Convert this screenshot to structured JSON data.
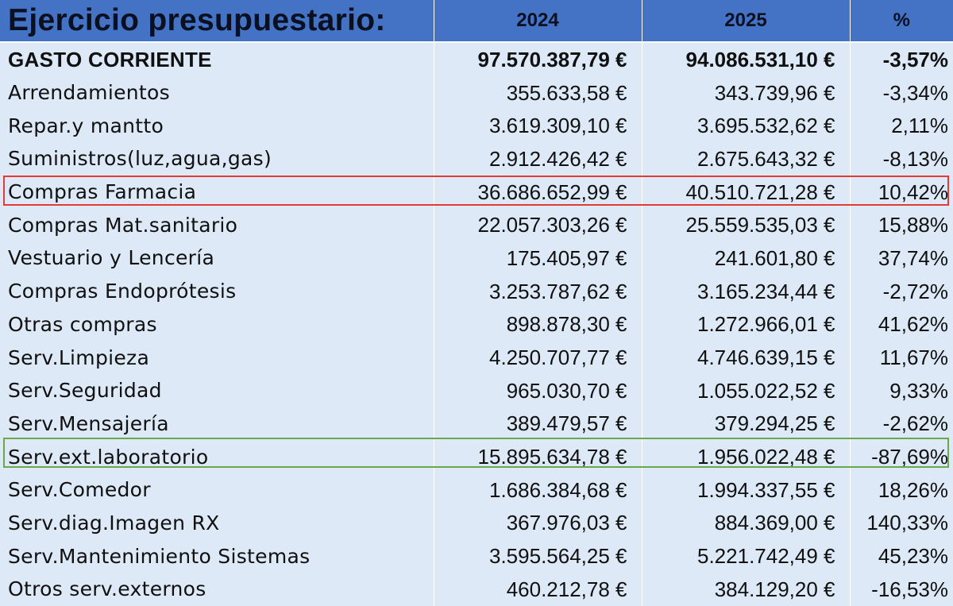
{
  "header": {
    "title": "Ejercicio presupuestario:",
    "col_2024": "2024",
    "col_2025": "2025",
    "col_pct": "%"
  },
  "highlight_colors": {
    "red": "#e53935",
    "green": "#6aa84f"
  },
  "header_color": "#4472c4",
  "rows": [
    {
      "label": "GASTO CORRIENTE",
      "v2024": "97.570.387,79 €",
      "v2025": "94.086.531,10 €",
      "pct": "-3,57%"
    },
    {
      "label": "Arrendamientos",
      "v2024": "355.633,58 €",
      "v2025": "343.739,96 €",
      "pct": "-3,34%"
    },
    {
      "label": "Repar.y mantto",
      "v2024": "3.619.309,10 €",
      "v2025": "3.695.532,62 €",
      "pct": "2,11%"
    },
    {
      "label": "Suministros(luz,agua,gas)",
      "v2024": "2.912.426,42 €",
      "v2025": "2.675.643,32 €",
      "pct": "-8,13%"
    },
    {
      "label": "Compras Farmacia",
      "v2024": "36.686.652,99 €",
      "v2025": "40.510.721,28 €",
      "pct": "10,42%"
    },
    {
      "label": "Compras Mat.sanitario",
      "v2024": "22.057.303,26 €",
      "v2025": "25.559.535,03 €",
      "pct": "15,88%"
    },
    {
      "label": "Vestuario y Lencería",
      "v2024": "175.405,97 €",
      "v2025": "241.601,80 €",
      "pct": "37,74%"
    },
    {
      "label": "Compras Endoprótesis",
      "v2024": "3.253.787,62 €",
      "v2025": "3.165.234,44 €",
      "pct": "-2,72%"
    },
    {
      "label": "Otras compras",
      "v2024": "898.878,30 €",
      "v2025": "1.272.966,01 €",
      "pct": "41,62%"
    },
    {
      "label": "Serv.Limpieza",
      "v2024": "4.250.707,77 €",
      "v2025": "4.746.639,15 €",
      "pct": "11,67%"
    },
    {
      "label": "Serv.Seguridad",
      "v2024": "965.030,70 €",
      "v2025": "1.055.022,52 €",
      "pct": "9,33%"
    },
    {
      "label": "Serv.Mensajería",
      "v2024": "389.479,57 €",
      "v2025": "379.294,25 €",
      "pct": "-2,62%"
    },
    {
      "label": "Serv.ext.laboratorio",
      "v2024": "15.895.634,78 €",
      "v2025": "1.956.022,48 €",
      "pct": "-87,69%"
    },
    {
      "label": "Serv.Comedor",
      "v2024": "1.686.384,68 €",
      "v2025": "1.994.337,55 €",
      "pct": "18,26%"
    },
    {
      "label": "Serv.diag.Imagen RX",
      "v2024": "367.976,03 €",
      "v2025": "884.369,00 €",
      "pct": "140,33%"
    },
    {
      "label": "Serv.Mantenimiento Sistemas",
      "v2024": "3.595.564,25 €",
      "v2025": "5.221.742,49 €",
      "pct": "45,23%"
    },
    {
      "label": "Otros serv.externos",
      "v2024": "460.212,78 €",
      "v2025": "384.129,20 €",
      "pct": "-16,53%"
    }
  ]
}
